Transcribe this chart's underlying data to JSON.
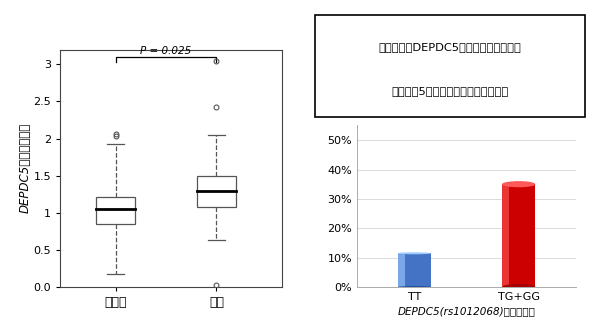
{
  "boxplot": {
    "non_cancer": {
      "q1": 0.85,
      "median": 1.05,
      "q3": 1.22,
      "whisker_low": 0.17,
      "whisker_high": 1.93,
      "outliers": [
        2.06,
        2.04
      ]
    },
    "cancer": {
      "q1": 1.08,
      "median": 1.3,
      "q3": 1.5,
      "whisker_low": 0.63,
      "whisker_high": 2.05,
      "outliers": [
        2.42,
        3.05,
        0.03
      ]
    },
    "ylim": [
      0.0,
      3.2
    ],
    "yticks": [
      0.0,
      0.5,
      1.0,
      1.5,
      2.0,
      2.5,
      3.0
    ],
    "ylabel": "DEPDC5相対的発現量",
    "labels": [
      "非がん",
      "がん"
    ],
    "pvalue": "P = 0.025"
  },
  "bar": {
    "categories": [
      "TT",
      "TG+GG"
    ],
    "values": [
      0.115,
      0.35
    ],
    "colors": [
      "#4472C4",
      "#CC0000"
    ],
    "ylim": [
      0,
      0.55
    ],
    "yticks": [
      0.0,
      0.1,
      0.2,
      0.3,
      0.4,
      0.5
    ],
    "ytick_labels": [
      "0%",
      "10%",
      "20%",
      "30%",
      "40%",
      "50%"
    ],
    "xlabel": "DEPDC5(rs1012068)の遣伝子型",
    "title_line1": "がん組織中DEPDC5発現量が非がん組織",
    "title_line2": "に比べて5倍以上であった症例の割合"
  },
  "background_color": "#ffffff"
}
